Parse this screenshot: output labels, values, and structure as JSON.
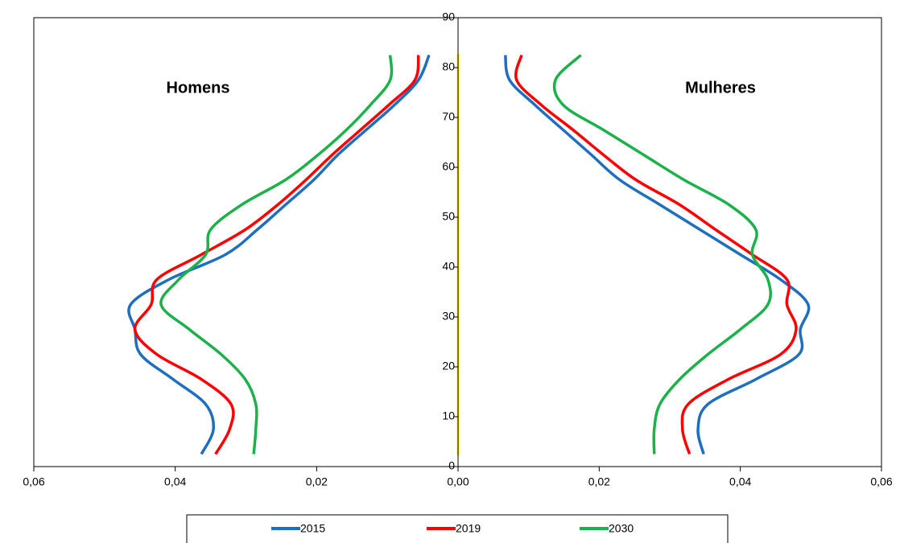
{
  "chart_data": {
    "type": "line",
    "ylim": [
      0,
      90
    ],
    "yticks": [
      0,
      10,
      20,
      30,
      40,
      50,
      60,
      70,
      80,
      90
    ],
    "y": [
      2.5,
      7.5,
      12.5,
      17.5,
      22.5,
      27.5,
      32.5,
      37.5,
      42.5,
      47.5,
      52.5,
      57.5,
      62.5,
      67.5,
      72.5,
      77.5,
      82.5
    ],
    "panels": [
      {
        "title": "Homens",
        "x_reversed": true,
        "xlim": [
          0,
          0.06
        ],
        "xticks": [
          {
            "value": 0.06,
            "label": "0,06"
          },
          {
            "value": 0.04,
            "label": "0,04"
          },
          {
            "value": 0.02,
            "label": "0,02"
          }
        ]
      },
      {
        "title": "Mulheres",
        "xlim": [
          0,
          0.06
        ],
        "xticks": [
          {
            "value": 0,
            "label": "0,00"
          },
          {
            "value": 0.02,
            "label": "0,02"
          },
          {
            "value": 0.04,
            "label": "0,04"
          },
          {
            "value": 0.06,
            "label": "0,06"
          }
        ]
      }
    ],
    "series": [
      {
        "name": "2015",
        "color": "#1f6fc0",
        "values": [
          [
            0.0363,
            0.0346,
            0.0357,
            0.0403,
            0.0449,
            0.0457,
            0.0463,
            0.0409,
            0.0329,
            0.0284,
            0.0244,
            0.0204,
            0.017,
            0.013,
            0.009,
            0.0056,
            0.0041
          ],
          [
            0.0348,
            0.034,
            0.0354,
            0.0422,
            0.0483,
            0.0485,
            0.0496,
            0.0457,
            0.04,
            0.0343,
            0.0286,
            0.0229,
            0.0189,
            0.0149,
            0.0109,
            0.0073,
            0.0067
          ]
        ]
      },
      {
        "name": "2019",
        "color": "#ff0000",
        "values": [
          [
            0.0343,
            0.0323,
            0.0321,
            0.0363,
            0.0426,
            0.0457,
            0.0434,
            0.0426,
            0.0363,
            0.0301,
            0.0255,
            0.0215,
            0.0178,
            0.0138,
            0.0098,
            0.0061,
            0.0056
          ],
          [
            0.0328,
            0.0318,
            0.0326,
            0.0383,
            0.0457,
            0.0479,
            0.0466,
            0.0466,
            0.0417,
            0.0365,
            0.0314,
            0.0252,
            0.0206,
            0.0163,
            0.0118,
            0.0083,
            0.009
          ]
        ]
      },
      {
        "name": "2030",
        "color": "#1db14b",
        "values": [
          [
            0.0289,
            0.0286,
            0.0286,
            0.0301,
            0.0335,
            0.038,
            0.042,
            0.0395,
            0.0357,
            0.035,
            0.0306,
            0.0244,
            0.0198,
            0.0158,
            0.0124,
            0.0096,
            0.0096
          ],
          [
            0.0278,
            0.0278,
            0.0286,
            0.0314,
            0.0354,
            0.04,
            0.0439,
            0.0439,
            0.0417,
            0.0422,
            0.0384,
            0.032,
            0.0263,
            0.0206,
            0.0149,
            0.0138,
            0.0174
          ]
        ]
      }
    ]
  }
}
